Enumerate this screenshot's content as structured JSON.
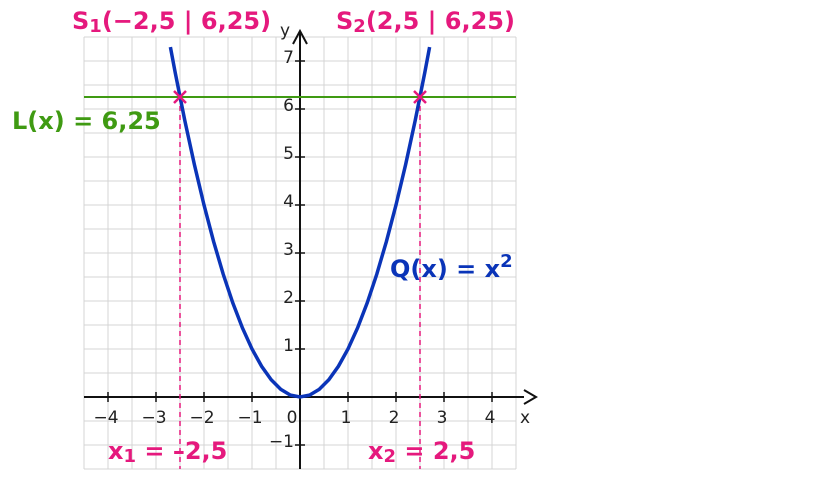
{
  "chart_data": {
    "type": "line",
    "xlim": [
      -4.5,
      4.5
    ],
    "ylim": [
      -1.5,
      7.5
    ],
    "xticks": [
      {
        "value": -4,
        "label": "−4"
      },
      {
        "value": -3,
        "label": "−3"
      },
      {
        "value": -2,
        "label": "−2"
      },
      {
        "value": -1,
        "label": "−1"
      },
      0,
      1,
      2,
      3,
      4
    ],
    "yticks": [
      {
        "value": -1,
        "label": "−1"
      },
      1,
      2,
      3,
      4,
      5,
      6,
      7
    ],
    "x_label": "x",
    "y_label": "y",
    "grid": true,
    "grid_step": 0.5,
    "series": [
      {
        "name": "Q",
        "color": "#0a34b8",
        "x": [
          -2.7,
          -2.6,
          -2.4,
          -2.2,
          -2.0,
          -1.8,
          -1.6,
          -1.4,
          -1.2,
          -1.0,
          -0.8,
          -0.6,
          -0.4,
          -0.2,
          0,
          0.2,
          0.4,
          0.6,
          0.8,
          1.0,
          1.2,
          1.4,
          1.6,
          1.8,
          2.0,
          2.2,
          2.4,
          2.6,
          2.7
        ],
        "values": [
          7.29,
          6.76,
          5.76,
          4.84,
          4,
          3.24,
          2.56,
          1.96,
          1.44,
          1,
          0.64,
          0.36,
          0.16,
          0.04,
          0,
          0.04,
          0.16,
          0.36,
          0.64,
          1,
          1.44,
          1.96,
          2.56,
          3.24,
          4,
          4.84,
          5.76,
          6.76,
          7.29
        ]
      },
      {
        "name": "L",
        "color": "#3f9a12",
        "x": [
          -4.5,
          4.5
        ],
        "values": [
          6.25,
          6.25
        ]
      }
    ],
    "points": {
      "color": "#e5197d",
      "x": [
        -2.5,
        2.5
      ],
      "values": [
        6.25,
        6.25
      ]
    },
    "annotations": [
      {
        "color": "#e5197d",
        "parts": [
          {
            "text": "S"
          },
          {
            "text": "1",
            "sub": true
          },
          {
            "text": "(−2,5 | 6,25)"
          }
        ]
      },
      {
        "color": "#e5197d",
        "parts": [
          {
            "text": "S"
          },
          {
            "text": "2",
            "sub": true
          },
          {
            "text": "(2,5 | 6,25)"
          }
        ]
      },
      {
        "color": "#3f9a12",
        "parts": [
          {
            "text": "L(x) = 6,25"
          }
        ]
      },
      {
        "color": "#0a34b8",
        "parts": [
          {
            "text": "Q(x) = x"
          },
          {
            "text": "2",
            "sup": true
          }
        ]
      },
      {
        "color": "#e5197d",
        "parts": [
          {
            "text": "x"
          },
          {
            "text": "1",
            "sub": true
          },
          {
            "text": " = –2,5"
          }
        ]
      },
      {
        "color": "#e5197d",
        "parts": [
          {
            "text": "x"
          },
          {
            "text": "2",
            "sub": true
          },
          {
            "text": " = 2,5"
          }
        ]
      }
    ]
  }
}
